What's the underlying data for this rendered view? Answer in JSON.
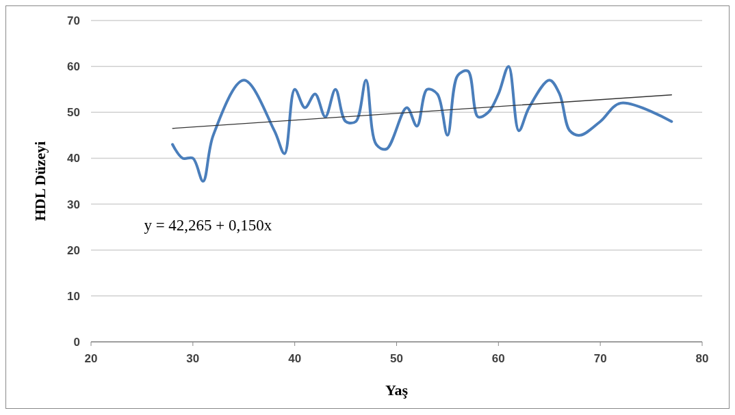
{
  "chart_data": {
    "type": "line",
    "xlabel": "Yaş",
    "ylabel": "HDL Düzeyi",
    "xlim": [
      20,
      80
    ],
    "xticks": [
      20,
      30,
      40,
      50,
      60,
      70,
      80
    ],
    "ylim": [
      0,
      70
    ],
    "yticks": [
      0,
      10,
      20,
      30,
      40,
      50,
      60,
      70
    ],
    "grid": "y",
    "annotations": [
      "y = 42,265 + 0,150x"
    ],
    "series": [
      {
        "color": "#4a7ebb",
        "x": [
          28,
          29,
          30,
          31,
          32,
          35,
          38,
          39,
          40,
          41,
          42,
          43,
          44,
          45,
          46,
          47,
          48,
          49,
          51,
          52,
          53,
          54,
          55,
          56,
          57,
          58,
          59,
          60,
          61,
          62,
          63,
          65,
          66,
          67,
          68,
          70,
          72,
          77
        ],
        "values": [
          43,
          40,
          40,
          35,
          45,
          57,
          46,
          41,
          55,
          51,
          54,
          49,
          55,
          48,
          48,
          57,
          43,
          42,
          51,
          47,
          55,
          54,
          45,
          58,
          59,
          49,
          50,
          54,
          60,
          46,
          51,
          57,
          54,
          46,
          45,
          48,
          52,
          48
        ]
      },
      {
        "color": "#333333",
        "x": [
          28,
          77
        ],
        "values": [
          46.5,
          53.8
        ]
      }
    ]
  }
}
